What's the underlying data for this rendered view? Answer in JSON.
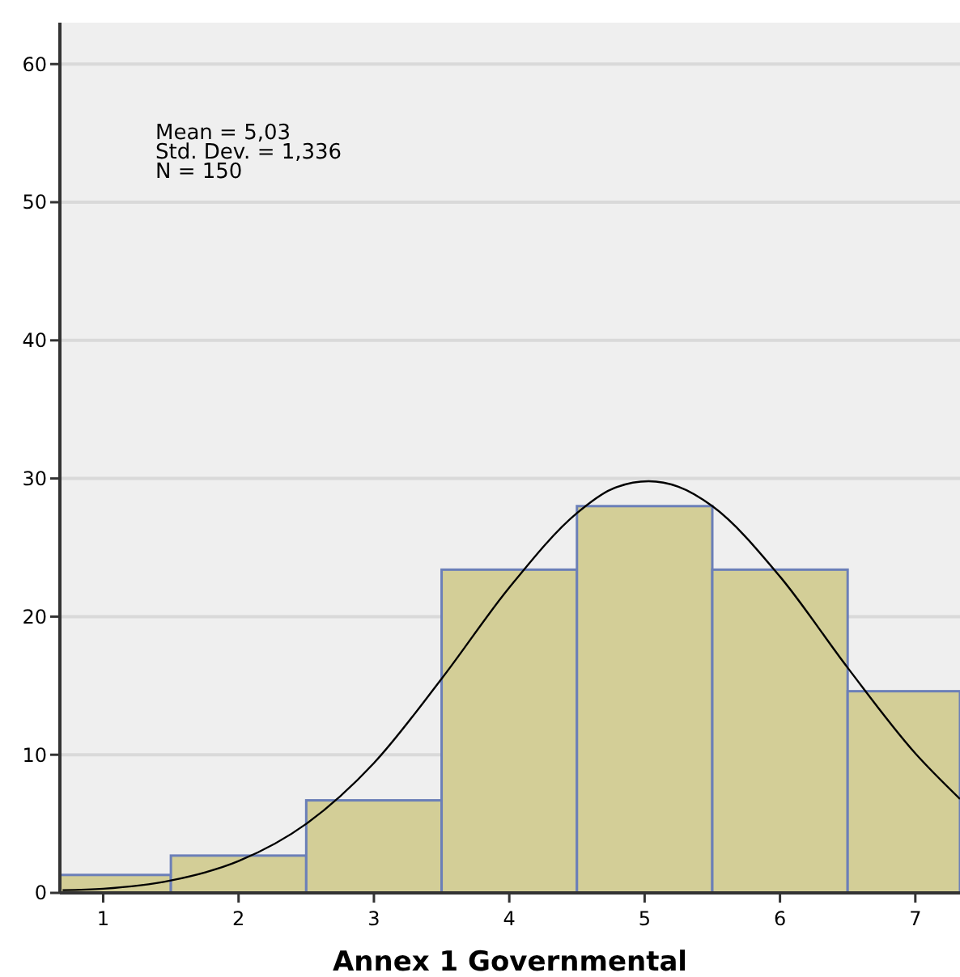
{
  "chart_data": {
    "type": "histogram",
    "xlabel": "Annex 1 Governmental",
    "bins": [
      0.68,
      1.5,
      2.5,
      3.5,
      4.5,
      5.5,
      6.5,
      7.33
    ],
    "values": [
      1.3,
      2.7,
      6.7,
      23.4,
      28,
      23.4,
      14.6
    ],
    "color": "#d3ce97",
    "series": [
      {
        "type": "line",
        "color": "#000000",
        "x": [
          0.7,
          1,
          1.5,
          2,
          2.5,
          3,
          3.5,
          4,
          4.5,
          4.75,
          5.03,
          5.25,
          5.5,
          6,
          6.5,
          7,
          7.33
        ],
        "values": [
          0.2,
          0.3,
          0.9,
          2.3,
          5,
          9.4,
          15.5,
          22.1,
          27.5,
          29.2,
          29.8,
          29.4,
          28,
          22.9,
          16.3,
          10.1,
          6.8
        ]
      }
    ],
    "xlim": [
      0.68,
      7.33
    ],
    "xticks": [
      1,
      2,
      3,
      4,
      5,
      6,
      7
    ],
    "ylim": [
      0,
      63
    ],
    "yticks": [
      0,
      10,
      20,
      30,
      40,
      50,
      60
    ],
    "grid": "y",
    "annotations": [
      "Mean = 5,03",
      "Std. Dev. = 1,336",
      "N = 150"
    ]
  }
}
